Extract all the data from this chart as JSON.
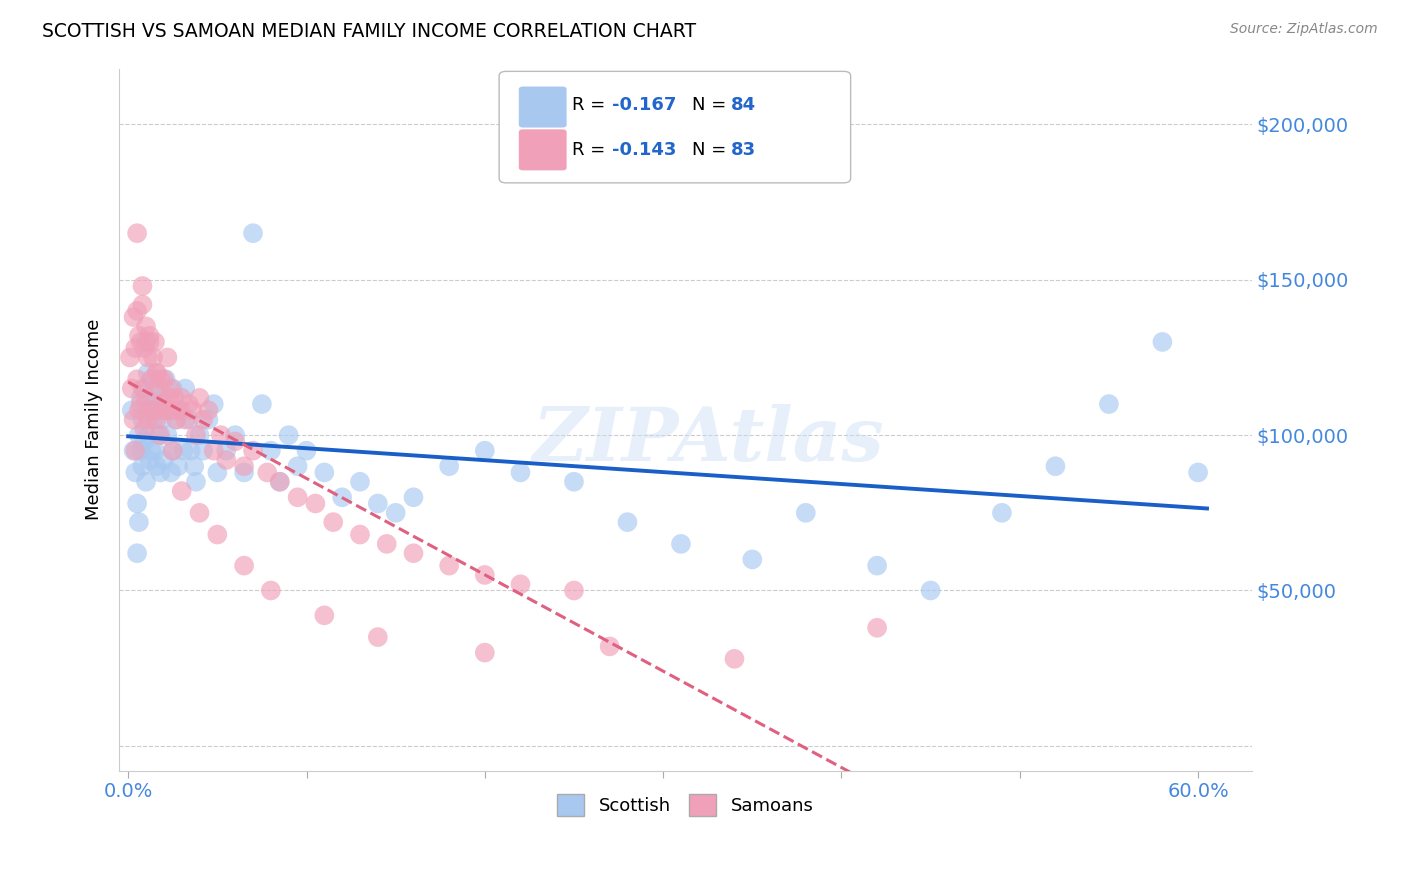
{
  "title": "SCOTTISH VS SAMOAN MEDIAN FAMILY INCOME CORRELATION CHART",
  "source": "Source: ZipAtlas.com",
  "ylabel": "Median Family Income",
  "y_ticks": [
    0,
    50000,
    100000,
    150000,
    200000
  ],
  "y_tick_labels": [
    "",
    "$50,000",
    "$100,000",
    "$150,000",
    "$200,000"
  ],
  "xlim": [
    -0.005,
    0.63
  ],
  "ylim": [
    -8000,
    218000
  ],
  "watermark": "ZIPAtlas",
  "scottish_color": "#a8c8f0",
  "samoan_color": "#f0a0b8",
  "line_scottish_color": "#1a5fc8",
  "line_samoan_color": "#e06080",
  "scottish_x": [
    0.002,
    0.003,
    0.004,
    0.005,
    0.006,
    0.006,
    0.007,
    0.007,
    0.008,
    0.008,
    0.009,
    0.009,
    0.01,
    0.01,
    0.01,
    0.011,
    0.011,
    0.012,
    0.012,
    0.013,
    0.013,
    0.014,
    0.015,
    0.015,
    0.016,
    0.016,
    0.017,
    0.018,
    0.018,
    0.019,
    0.02,
    0.02,
    0.021,
    0.022,
    0.023,
    0.024,
    0.025,
    0.025,
    0.027,
    0.028,
    0.03,
    0.031,
    0.032,
    0.034,
    0.035,
    0.037,
    0.038,
    0.04,
    0.042,
    0.045,
    0.048,
    0.05,
    0.055,
    0.06,
    0.065,
    0.07,
    0.075,
    0.08,
    0.085,
    0.09,
    0.095,
    0.1,
    0.11,
    0.12,
    0.13,
    0.14,
    0.15,
    0.16,
    0.18,
    0.2,
    0.22,
    0.25,
    0.28,
    0.31,
    0.35,
    0.38,
    0.42,
    0.45,
    0.49,
    0.52,
    0.55,
    0.58,
    0.6,
    0.005
  ],
  "scottish_y": [
    108000,
    95000,
    88000,
    78000,
    72000,
    100000,
    112000,
    95000,
    90000,
    105000,
    98000,
    115000,
    110000,
    130000,
    85000,
    120000,
    100000,
    108000,
    92000,
    118000,
    95000,
    105000,
    115000,
    95000,
    108000,
    90000,
    100000,
    112000,
    88000,
    105000,
    110000,
    92000,
    118000,
    100000,
    108000,
    88000,
    115000,
    95000,
    105000,
    90000,
    108000,
    95000,
    115000,
    105000,
    95000,
    90000,
    85000,
    100000,
    95000,
    105000,
    110000,
    88000,
    95000,
    100000,
    88000,
    165000,
    110000,
    95000,
    85000,
    100000,
    90000,
    95000,
    88000,
    80000,
    85000,
    78000,
    75000,
    80000,
    90000,
    95000,
    88000,
    85000,
    72000,
    65000,
    60000,
    75000,
    58000,
    50000,
    75000,
    90000,
    110000,
    130000,
    88000,
    62000
  ],
  "samoan_x": [
    0.001,
    0.002,
    0.003,
    0.003,
    0.004,
    0.004,
    0.005,
    0.005,
    0.006,
    0.006,
    0.007,
    0.007,
    0.008,
    0.008,
    0.009,
    0.009,
    0.01,
    0.01,
    0.011,
    0.011,
    0.012,
    0.012,
    0.013,
    0.014,
    0.015,
    0.015,
    0.016,
    0.016,
    0.017,
    0.018,
    0.018,
    0.019,
    0.02,
    0.021,
    0.022,
    0.023,
    0.024,
    0.025,
    0.026,
    0.027,
    0.028,
    0.03,
    0.032,
    0.034,
    0.036,
    0.038,
    0.04,
    0.042,
    0.045,
    0.048,
    0.052,
    0.055,
    0.06,
    0.065,
    0.07,
    0.078,
    0.085,
    0.095,
    0.105,
    0.115,
    0.13,
    0.145,
    0.16,
    0.18,
    0.2,
    0.22,
    0.25,
    0.005,
    0.008,
    0.012,
    0.016,
    0.02,
    0.025,
    0.03,
    0.04,
    0.05,
    0.065,
    0.08,
    0.11,
    0.14,
    0.2,
    0.27,
    0.34,
    0.42
  ],
  "samoan_y": [
    125000,
    115000,
    138000,
    105000,
    128000,
    95000,
    140000,
    118000,
    132000,
    108000,
    130000,
    110000,
    142000,
    115000,
    128000,
    102000,
    135000,
    112000,
    125000,
    105000,
    130000,
    108000,
    118000,
    125000,
    130000,
    108000,
    120000,
    105000,
    115000,
    118000,
    100000,
    110000,
    118000,
    108000,
    125000,
    112000,
    115000,
    108000,
    112000,
    105000,
    108000,
    112000,
    105000,
    110000,
    108000,
    100000,
    112000,
    105000,
    108000,
    95000,
    100000,
    92000,
    98000,
    90000,
    95000,
    88000,
    85000,
    80000,
    78000,
    72000,
    68000,
    65000,
    62000,
    58000,
    55000,
    52000,
    50000,
    165000,
    148000,
    132000,
    120000,
    108000,
    95000,
    82000,
    75000,
    68000,
    58000,
    50000,
    42000,
    35000,
    30000,
    32000,
    28000,
    38000
  ]
}
